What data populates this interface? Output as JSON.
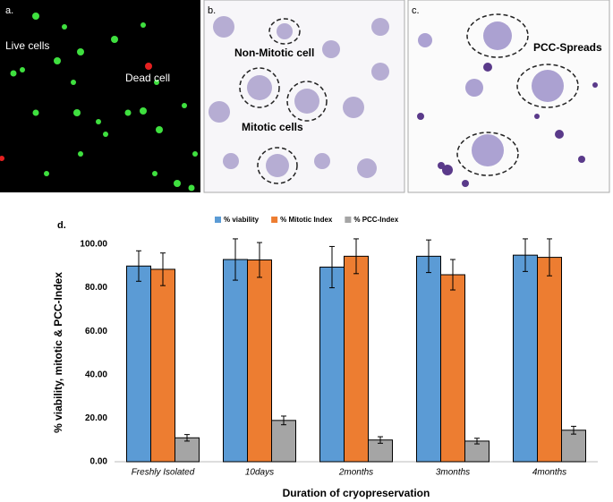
{
  "panels": [
    {
      "label": "a.",
      "annotations": [
        "Live cells",
        "Dead cell"
      ]
    },
    {
      "label": "b.",
      "annotations": [
        "Non-Mitotic cell",
        "Mitotic cells"
      ]
    },
    {
      "label": "c.",
      "annotations": [
        "PCC-Spreads"
      ]
    }
  ],
  "chart_data": {
    "type": "bar",
    "panel_label": "d.",
    "ylabel": "% viability, mitotic & PCC-Index",
    "xlabel": "Duration of cryopreservation",
    "categories": [
      "Freshly Isolated",
      "10days",
      "2months",
      "3months",
      "4months"
    ],
    "series": [
      {
        "name": "% viability",
        "color": "#5b9bd5",
        "values": [
          90,
          93,
          89.5,
          94.5,
          95
        ],
        "errors": [
          7,
          9.5,
          9.5,
          7.5,
          7.5
        ]
      },
      {
        "name": "% Mitotic Index",
        "color": "#ed7d31",
        "values": [
          88.5,
          92.8,
          94.5,
          86,
          94
        ],
        "errors": [
          7.5,
          8,
          8,
          7,
          8.5
        ]
      },
      {
        "name": "% PCC-Index",
        "color": "#a5a5a5",
        "values": [
          11,
          19,
          10,
          9.5,
          14.5
        ],
        "errors": [
          1.5,
          2,
          1.5,
          1.3,
          1.8
        ]
      }
    ],
    "ylim": [
      0,
      100
    ],
    "yticks": [
      {
        "value": 0,
        "label": "0.00"
      },
      {
        "value": 20,
        "label": "20.00"
      },
      {
        "value": 40,
        "label": "40.00"
      },
      {
        "value": 60,
        "label": "60.00"
      },
      {
        "value": 80,
        "label": "80.00"
      },
      {
        "value": 100,
        "label": "100.00"
      }
    ],
    "legend": "top"
  }
}
